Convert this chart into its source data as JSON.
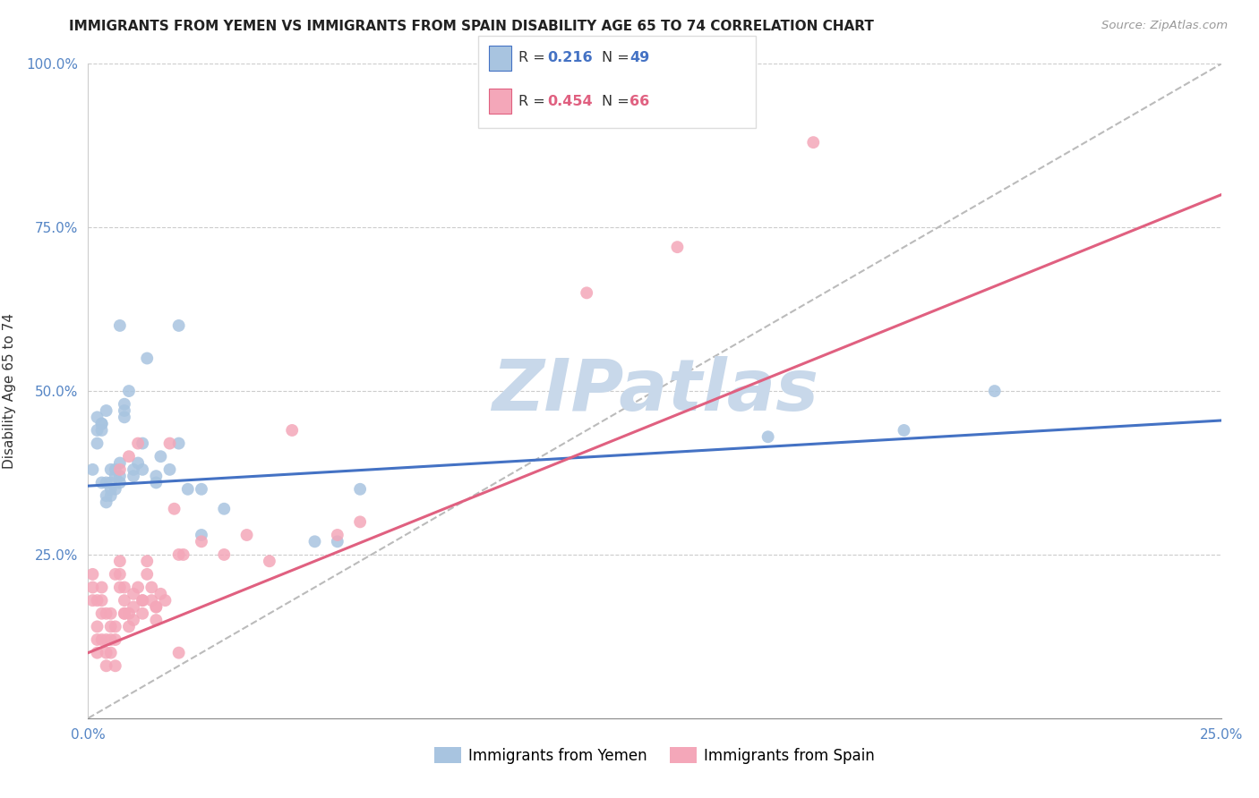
{
  "title": "IMMIGRANTS FROM YEMEN VS IMMIGRANTS FROM SPAIN DISABILITY AGE 65 TO 74 CORRELATION CHART",
  "source": "Source: ZipAtlas.com",
  "ylabel": "Disability Age 65 to 74",
  "xlim": [
    0.0,
    0.25
  ],
  "ylim": [
    0.0,
    1.0
  ],
  "color_yemen": "#a8c4e0",
  "color_spain": "#f4a7b9",
  "line_color_yemen": "#4472c4",
  "line_color_spain": "#e06080",
  "line_color_dashed": "#bbbbbb",
  "watermark": "ZIPatlas",
  "watermark_color": "#c8d8ea",
  "yemen_x": [
    0.001,
    0.002,
    0.002,
    0.003,
    0.003,
    0.003,
    0.004,
    0.004,
    0.004,
    0.005,
    0.005,
    0.005,
    0.006,
    0.006,
    0.007,
    0.007,
    0.007,
    0.008,
    0.008,
    0.009,
    0.01,
    0.01,
    0.011,
    0.012,
    0.013,
    0.015,
    0.015,
    0.016,
    0.018,
    0.02,
    0.022,
    0.025,
    0.03,
    0.05,
    0.055,
    0.06,
    0.15,
    0.18,
    0.2,
    0.002,
    0.003,
    0.004,
    0.005,
    0.006,
    0.007,
    0.008,
    0.012,
    0.02,
    0.025
  ],
  "yemen_y": [
    0.38,
    0.44,
    0.46,
    0.44,
    0.45,
    0.36,
    0.33,
    0.36,
    0.47,
    0.34,
    0.36,
    0.38,
    0.35,
    0.38,
    0.36,
    0.37,
    0.39,
    0.46,
    0.48,
    0.5,
    0.37,
    0.38,
    0.39,
    0.42,
    0.55,
    0.36,
    0.37,
    0.4,
    0.38,
    0.42,
    0.35,
    0.28,
    0.32,
    0.27,
    0.27,
    0.35,
    0.43,
    0.44,
    0.5,
    0.42,
    0.45,
    0.34,
    0.35,
    0.37,
    0.6,
    0.47,
    0.38,
    0.6,
    0.35
  ],
  "spain_x": [
    0.001,
    0.001,
    0.002,
    0.002,
    0.002,
    0.003,
    0.003,
    0.003,
    0.004,
    0.004,
    0.004,
    0.005,
    0.005,
    0.005,
    0.006,
    0.006,
    0.006,
    0.007,
    0.007,
    0.007,
    0.008,
    0.008,
    0.008,
    0.009,
    0.009,
    0.01,
    0.01,
    0.011,
    0.011,
    0.012,
    0.012,
    0.013,
    0.013,
    0.014,
    0.014,
    0.015,
    0.015,
    0.016,
    0.017,
    0.018,
    0.019,
    0.02,
    0.021,
    0.025,
    0.03,
    0.035,
    0.04,
    0.045,
    0.055,
    0.06,
    0.001,
    0.002,
    0.003,
    0.004,
    0.005,
    0.006,
    0.007,
    0.008,
    0.009,
    0.01,
    0.012,
    0.015,
    0.02,
    0.11,
    0.13,
    0.16
  ],
  "spain_y": [
    0.18,
    0.22,
    0.1,
    0.14,
    0.18,
    0.12,
    0.16,
    0.2,
    0.08,
    0.12,
    0.16,
    0.1,
    0.14,
    0.16,
    0.08,
    0.12,
    0.14,
    0.2,
    0.24,
    0.38,
    0.16,
    0.18,
    0.2,
    0.14,
    0.4,
    0.15,
    0.17,
    0.2,
    0.42,
    0.16,
    0.18,
    0.22,
    0.24,
    0.18,
    0.2,
    0.15,
    0.17,
    0.19,
    0.18,
    0.42,
    0.32,
    0.1,
    0.25,
    0.27,
    0.25,
    0.28,
    0.24,
    0.44,
    0.28,
    0.3,
    0.2,
    0.12,
    0.18,
    0.1,
    0.12,
    0.22,
    0.22,
    0.16,
    0.16,
    0.19,
    0.18,
    0.17,
    0.25,
    0.65,
    0.72,
    0.88
  ],
  "yemen_line_x": [
    0.0,
    0.25
  ],
  "yemen_line_y": [
    0.355,
    0.455
  ],
  "spain_line_x": [
    0.0,
    0.25
  ],
  "spain_line_y": [
    0.1,
    0.8
  ]
}
